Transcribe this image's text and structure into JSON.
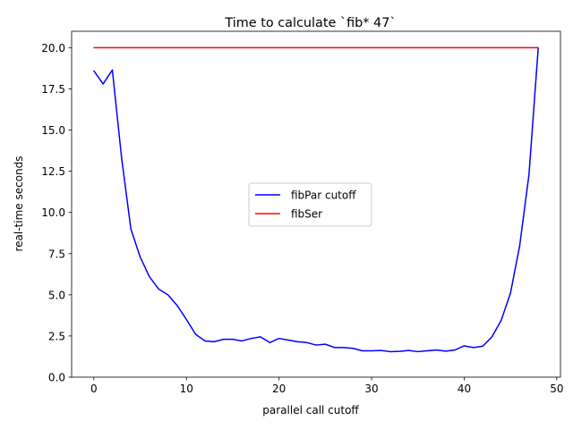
{
  "chart_data": {
    "type": "line",
    "title": "Time to calculate `fib* 47`",
    "xlabel": "parallel call cutoff",
    "ylabel": "real-time seconds",
    "xlim": [
      -2.4,
      50.4
    ],
    "ylim": [
      0,
      21
    ],
    "x_ticks": [
      0,
      10,
      20,
      30,
      40,
      50
    ],
    "y_ticks": [
      0.0,
      2.5,
      5.0,
      7.5,
      10.0,
      12.5,
      15.0,
      17.5,
      20.0
    ],
    "grid": false,
    "legend_position": "center",
    "series": [
      {
        "name": "fibPar cutoff",
        "color": "#0000ff",
        "x": [
          0,
          1,
          2,
          3,
          4,
          5,
          6,
          7,
          8,
          9,
          10,
          11,
          12,
          13,
          14,
          15,
          16,
          17,
          18,
          19,
          20,
          21,
          22,
          23,
          24,
          25,
          26,
          27,
          28,
          29,
          30,
          31,
          32,
          33,
          34,
          35,
          36,
          37,
          38,
          39,
          40,
          41,
          42,
          43,
          44,
          45,
          46,
          47,
          48
        ],
        "y": [
          18.6,
          17.8,
          18.65,
          13.3,
          9.0,
          7.3,
          6.1,
          5.35,
          5.0,
          4.35,
          3.5,
          2.6,
          2.2,
          2.15,
          2.3,
          2.3,
          2.2,
          2.35,
          2.45,
          2.1,
          2.35,
          2.25,
          2.15,
          2.1,
          1.95,
          2.0,
          1.8,
          1.8,
          1.75,
          1.6,
          1.6,
          1.62,
          1.55,
          1.57,
          1.62,
          1.55,
          1.6,
          1.65,
          1.58,
          1.65,
          1.9,
          1.8,
          1.88,
          2.45,
          3.45,
          5.1,
          8.0,
          12.3,
          20.0
        ]
      },
      {
        "name": "fibSer",
        "color": "#ff0000",
        "x": [
          0,
          48
        ],
        "y": [
          20.0,
          20.0
        ]
      }
    ]
  }
}
